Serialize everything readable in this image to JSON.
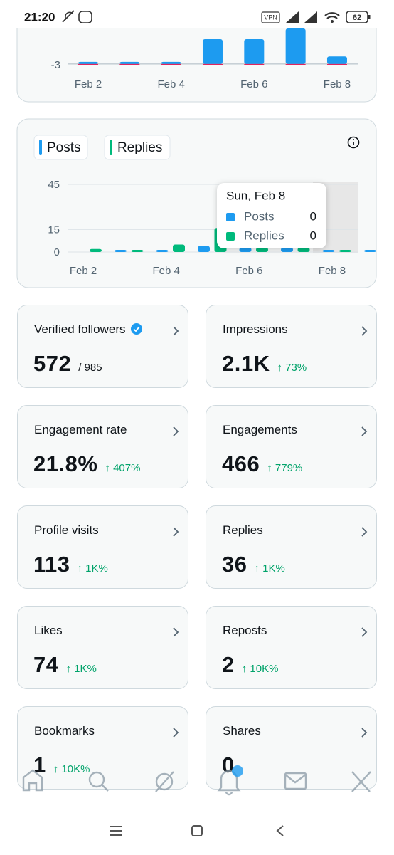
{
  "status_bar": {
    "time": "21:20",
    "vpn": "VPN",
    "battery": "62"
  },
  "top_chart": {
    "type": "bar",
    "categories": [
      "Feb 2",
      null,
      "Feb 4",
      null,
      "Feb 6",
      null,
      "Feb 8"
    ],
    "ylim": [
      -4,
      4
    ],
    "yticks": [
      -3
    ],
    "series": [
      {
        "color": "#1d9bf0",
        "values": [
          -2.6,
          -2.6,
          -2.6,
          1.9,
          1.9,
          4,
          -1.5
        ]
      }
    ]
  },
  "activity_chart": {
    "type": "bar",
    "categories": [
      "Feb 2",
      null,
      "Feb 4",
      null,
      "Feb 6",
      null,
      "Feb 8"
    ],
    "ylim": [
      0,
      45
    ],
    "yticks": [
      0,
      15,
      45
    ],
    "grid": true,
    "series": [
      {
        "name": "Posts",
        "color": "#1d9bf0",
        "values": [
          1,
          0,
          4,
          3,
          3,
          0,
          0
        ]
      },
      {
        "name": "Replies",
        "color": "#00ba7c",
        "values": [
          2,
          0,
          5,
          16,
          3,
          3,
          0
        ]
      }
    ],
    "tooltip": {
      "title": "Sun, Feb 8"
    }
  },
  "metrics": [
    {
      "title": "Verified followers",
      "value": "572",
      "total": "/ 985"
    },
    {
      "title": "Impressions",
      "value": "2.1K",
      "change": "↑ 73%"
    },
    {
      "title": "Engagement rate",
      "value": "21.8%",
      "change": "↑ 407%"
    },
    {
      "title": "Engagements",
      "value": "466",
      "change": "↑ 779%"
    },
    {
      "title": "Profile visits",
      "value": "113",
      "change": "↑ 1K%"
    },
    {
      "title": "Replies",
      "value": "36",
      "change": "↑ 1K%"
    },
    {
      "title": "Likes",
      "value": "74",
      "change": "↑ 1K%"
    },
    {
      "title": "Reposts",
      "value": "2",
      "change": "↑ 10K%"
    },
    {
      "title": "Bookmarks",
      "value": "1",
      "change": "↑ 10K%"
    },
    {
      "title": "Shares",
      "value": "0"
    }
  ]
}
